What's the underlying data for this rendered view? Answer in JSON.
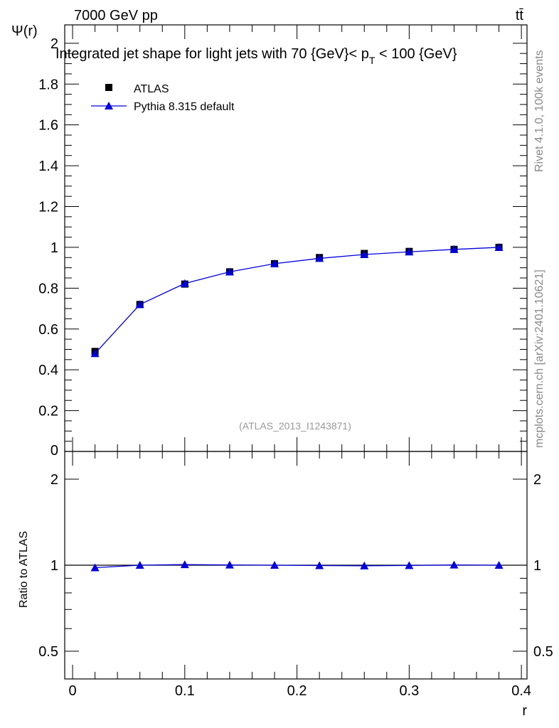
{
  "chart_data": [
    {
      "type": "line",
      "panel": "main",
      "title_parts": [
        "Integrated jet shape for light jets with 70 {GeV}< p",
        "T",
        " < 100 {GeV}"
      ],
      "header_left": "7000 GeV pp",
      "header_right": "tt̄",
      "ylabel": "Ψ(r)",
      "xlabel": "r",
      "xlim": [
        -0.007,
        0.405
      ],
      "ylim": [
        0,
        2.09
      ],
      "yticks": [
        0,
        0.2,
        0.4,
        0.6,
        0.8,
        1,
        1.2,
        1.4,
        1.6,
        1.8,
        2
      ],
      "ytick_labels": [
        "0",
        "0.2",
        "0.4",
        "0.6",
        "0.8",
        "1",
        "1.2",
        "1.4",
        "1.6",
        "1.8",
        "2"
      ],
      "x": [
        0.02,
        0.06,
        0.1,
        0.14,
        0.18,
        0.22,
        0.26,
        0.3,
        0.34,
        0.38
      ],
      "series": [
        {
          "name": "ATLAS",
          "marker": "square",
          "color": "#000000",
          "values": [
            0.49,
            0.72,
            0.82,
            0.88,
            0.92,
            0.95,
            0.97,
            0.98,
            0.99,
            1.0
          ]
        },
        {
          "name": "Pythia 8.315 default",
          "marker": "triangle",
          "color": "#0000dd",
          "values": [
            0.48,
            0.72,
            0.823,
            0.88,
            0.92,
            0.946,
            0.965,
            0.978,
            0.99,
            1.0
          ]
        }
      ],
      "legend": "top-left",
      "annotation": "(ATLAS_2013_I1243871)",
      "side_labels": [
        "Rivet 4.1.0,  100k events",
        "mcplots.cern.ch [arXiv:2401.10621]"
      ]
    },
    {
      "type": "line",
      "panel": "ratio",
      "ylabel": "Ratio to ATLAS",
      "yscale": "log",
      "ylim": [
        0.4,
        2.5
      ],
      "yticks": [
        0.5,
        1,
        2
      ],
      "ytick_labels": [
        "0.5",
        "1",
        "2"
      ],
      "xticks": [
        0,
        0.1,
        0.2,
        0.3,
        0.4
      ],
      "xtick_labels": [
        "0",
        "0.1",
        "0.2",
        "0.3",
        "0.4"
      ],
      "x": [
        0.02,
        0.06,
        0.1,
        0.14,
        0.18,
        0.22,
        0.26,
        0.3,
        0.34,
        0.38
      ],
      "series": [
        {
          "name": "Pythia 8.315 default",
          "color": "#0000dd",
          "values": [
            0.98,
            1.0,
            1.005,
            1.002,
            1.0,
            0.997,
            0.995,
            0.998,
            1.002,
            1.0
          ]
        }
      ]
    }
  ]
}
